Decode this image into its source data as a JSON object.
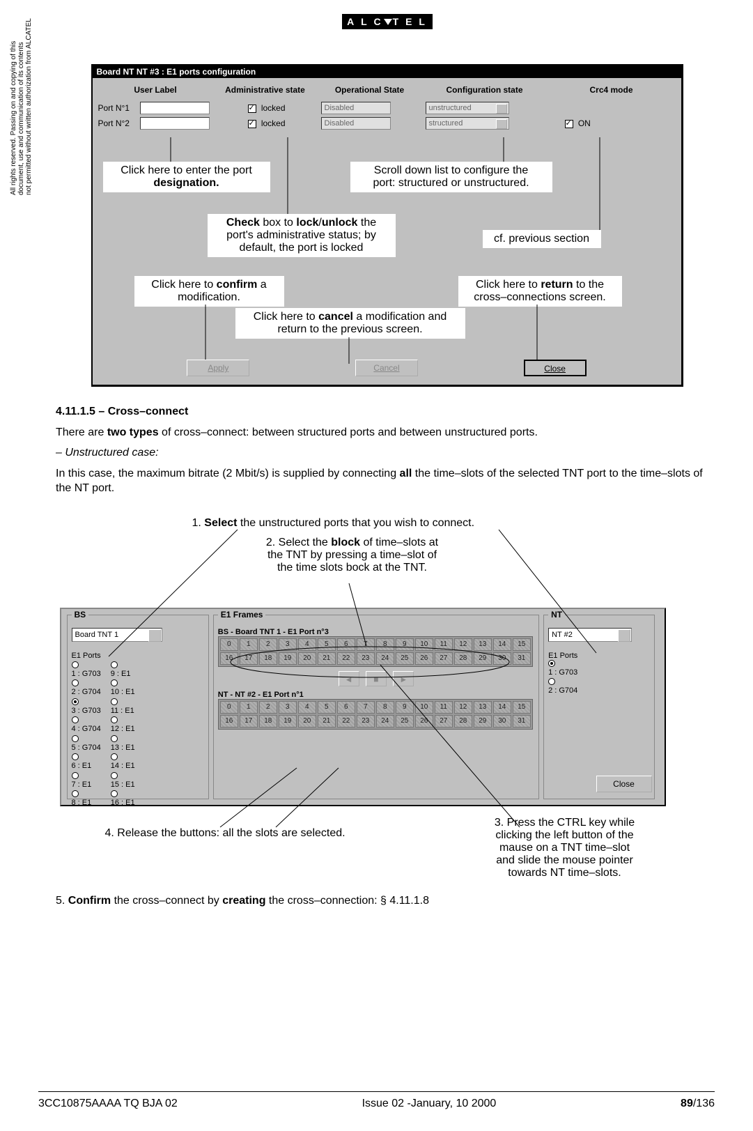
{
  "logo_text": "A L C T E L",
  "side_notice": "All rights reserved. Passing on and copying of this\ndocument, use and communication of its contents\nnot permitted without written authorization from ALCATEL",
  "dialog1": {
    "title": "Board NT NT #3 : E1 ports configuration",
    "headers": {
      "user_label": "User Label",
      "admin_state": "Administrative state",
      "op_state": "Operational State",
      "conf_state": "Configuration state",
      "crc": "Crc4 mode"
    },
    "rows": [
      {
        "label": "Port N°1",
        "admin": "locked",
        "op": "Disabled",
        "conf": "unstructured",
        "crc": ""
      },
      {
        "label": "Port N°2",
        "admin": "locked",
        "op": "Disabled",
        "conf": "structured",
        "crc": "ON"
      }
    ],
    "buttons": {
      "apply": "Apply",
      "cancel": "Cancel",
      "close": "Close"
    }
  },
  "callouts1": {
    "designation": "Click here to enter the port\n<b>designation.</b>",
    "checklock": "<b>Check</b> box to <b>lock</b>/<b>unlock</b> the\nport's administrative status; by\ndefault, the port is locked",
    "scrollconf": "Scroll down list to configure the\nport: structured or unstructured.",
    "prevsec": "cf. previous section",
    "confirm": "Click here to <b>confirm</b> a\nmodification.",
    "cancel": "Click here to <b>cancel</b> a modification and\nreturn to the previous screen.",
    "return": "Click here to <b>return</b> to the\ncross–connections screen."
  },
  "section": {
    "head": "4.11.1.5 – Cross–connect",
    "p1_a": "There are ",
    "p1_b": "two types",
    "p1_c": " of cross–connect: between structured ports and between unstructured ports.",
    "p2": "– Unstructured case:",
    "p3_a": "In this case, the maximum bitrate (2 Mbit/s) is supplied by connecting ",
    "p3_b": "all",
    "p3_c": " the time–slots of the selected TNT port to the time–slots of the NT port.",
    "p5_a": "5. ",
    "p5_b": "Confirm",
    "p5_c": " the cross–connect by ",
    "p5_d": "creating",
    "p5_e": " the cross–connection: § 4.11.1.8"
  },
  "callouts2": {
    "step1": "1. <b>Select</b> the unstructured ports that you wish to connect.",
    "step2": "2. Select the <b>block</b> of time–slots at\nthe TNT by pressing a time–slot of\nthe time slots bock at the TNT.",
    "step3": "3. Press the CTRL key while\nclicking the left button of the\nmause on a TNT time–slot\nand slide the mouse pointer\ntowards NT time–slots.",
    "step4": "4. Release the buttons: all the slots are selected."
  },
  "dialog2": {
    "bs_title": "BS",
    "bs_select": "Board TNT 1",
    "bs_ports_label": "E1 Ports",
    "bs_ports_left": [
      "1 : G703",
      "2 : G704",
      "3 : G703",
      "4 : G704",
      "5 : G704",
      "6 : E1",
      "7 : E1",
      "8 : E1"
    ],
    "bs_ports_right": [
      "9 : E1",
      "10 : E1",
      "11 : E1",
      "12 : E1",
      "13 : E1",
      "14 : E1",
      "15 : E1",
      "16 : E1"
    ],
    "bs_selected_index": 2,
    "e1_title": "E1 Frames",
    "e1_header1": "BS - Board TNT  1 - E1 Port n°3",
    "e1_header2": "NT - NT #2 - E1 Port n°1",
    "nt_title": "NT",
    "nt_select": "NT #2",
    "nt_ports_label": "E1 Ports",
    "nt_ports": [
      "1 : G703",
      "2 : G704"
    ],
    "nt_selected_index": 0,
    "close": "Close"
  },
  "footer": {
    "left": "3CC10875AAAA TQ BJA 02",
    "mid": "Issue 02 -January, 10 2000",
    "right_bold": "89",
    "right_rest": "/136"
  },
  "colors": {
    "window_bg": "#c0c0c0",
    "text": "#000000",
    "disabled_text": "#808080",
    "field_bg": "#ffffff",
    "field_disabled_bg": "#e0e0e0"
  }
}
